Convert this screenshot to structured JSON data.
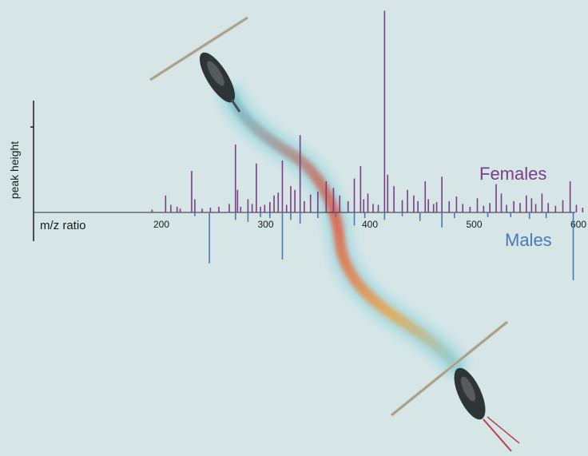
{
  "chart_data": {
    "type": "bar",
    "ylabel": "peak height",
    "xlabel": "m/z ratio",
    "xlim": [
      150,
      610
    ],
    "xticks": [
      200,
      300,
      400,
      500,
      600
    ],
    "series": [
      {
        "name": "Females",
        "color": "#7b3d85",
        "direction": "up",
        "peaks": [
          [
            188,
            3
          ],
          [
            201,
            18
          ],
          [
            206,
            8
          ],
          [
            212,
            6
          ],
          [
            215,
            4
          ],
          [
            226,
            44
          ],
          [
            229,
            14
          ],
          [
            236,
            4
          ],
          [
            244,
            5
          ],
          [
            252,
            6
          ],
          [
            262,
            9
          ],
          [
            268,
            72
          ],
          [
            270,
            24
          ],
          [
            273,
            6
          ],
          [
            280,
            14
          ],
          [
            284,
            9
          ],
          [
            288,
            52
          ],
          [
            292,
            6
          ],
          [
            296,
            8
          ],
          [
            301,
            11
          ],
          [
            305,
            18
          ],
          [
            309,
            21
          ],
          [
            313,
            55
          ],
          [
            317,
            8
          ],
          [
            321,
            28
          ],
          [
            325,
            24
          ],
          [
            330,
            82
          ],
          [
            334,
            12
          ],
          [
            340,
            19
          ],
          [
            347,
            22
          ],
          [
            355,
            33
          ],
          [
            362,
            26
          ],
          [
            368,
            18
          ],
          [
            376,
            12
          ],
          [
            382,
            36
          ],
          [
            388,
            49
          ],
          [
            391,
            14
          ],
          [
            395,
            20
          ],
          [
            400,
            9
          ],
          [
            405,
            8
          ],
          [
            411,
            214
          ],
          [
            414,
            40
          ],
          [
            420,
            28
          ],
          [
            428,
            13
          ],
          [
            433,
            24
          ],
          [
            439,
            18
          ],
          [
            443,
            12
          ],
          [
            450,
            33
          ],
          [
            453,
            14
          ],
          [
            458,
            9
          ],
          [
            461,
            11
          ],
          [
            466,
            38
          ],
          [
            473,
            12
          ],
          [
            480,
            17
          ],
          [
            486,
            9
          ],
          [
            493,
            6
          ],
          [
            500,
            15
          ],
          [
            506,
            7
          ],
          [
            512,
            10
          ],
          [
            518,
            30
          ],
          [
            523,
            20
          ],
          [
            528,
            8
          ],
          [
            535,
            12
          ],
          [
            541,
            10
          ],
          [
            547,
            18
          ],
          [
            552,
            15
          ],
          [
            556,
            9
          ],
          [
            562,
            20
          ],
          [
            568,
            10
          ],
          [
            575,
            7
          ],
          [
            582,
            13
          ],
          [
            589,
            33
          ],
          [
            595,
            8
          ],
          [
            601,
            5
          ]
        ]
      },
      {
        "name": "Males",
        "color": "#4a78b8",
        "direction": "down",
        "peaks": [
          [
            229,
            4
          ],
          [
            243,
            54
          ],
          [
            268,
            8
          ],
          [
            280,
            10
          ],
          [
            292,
            5
          ],
          [
            301,
            6
          ],
          [
            313,
            50
          ],
          [
            321,
            8
          ],
          [
            330,
            12
          ],
          [
            347,
            6
          ],
          [
            364,
            5
          ],
          [
            382,
            14
          ],
          [
            392,
            6
          ],
          [
            411,
            8
          ],
          [
            428,
            4
          ],
          [
            445,
            9
          ],
          [
            466,
            16
          ],
          [
            478,
            6
          ],
          [
            510,
            5
          ],
          [
            532,
            5
          ],
          [
            550,
            7
          ],
          [
            566,
            6
          ],
          [
            592,
            72
          ]
        ]
      }
    ],
    "legend": "right, next to each series",
    "grid": false
  }
}
